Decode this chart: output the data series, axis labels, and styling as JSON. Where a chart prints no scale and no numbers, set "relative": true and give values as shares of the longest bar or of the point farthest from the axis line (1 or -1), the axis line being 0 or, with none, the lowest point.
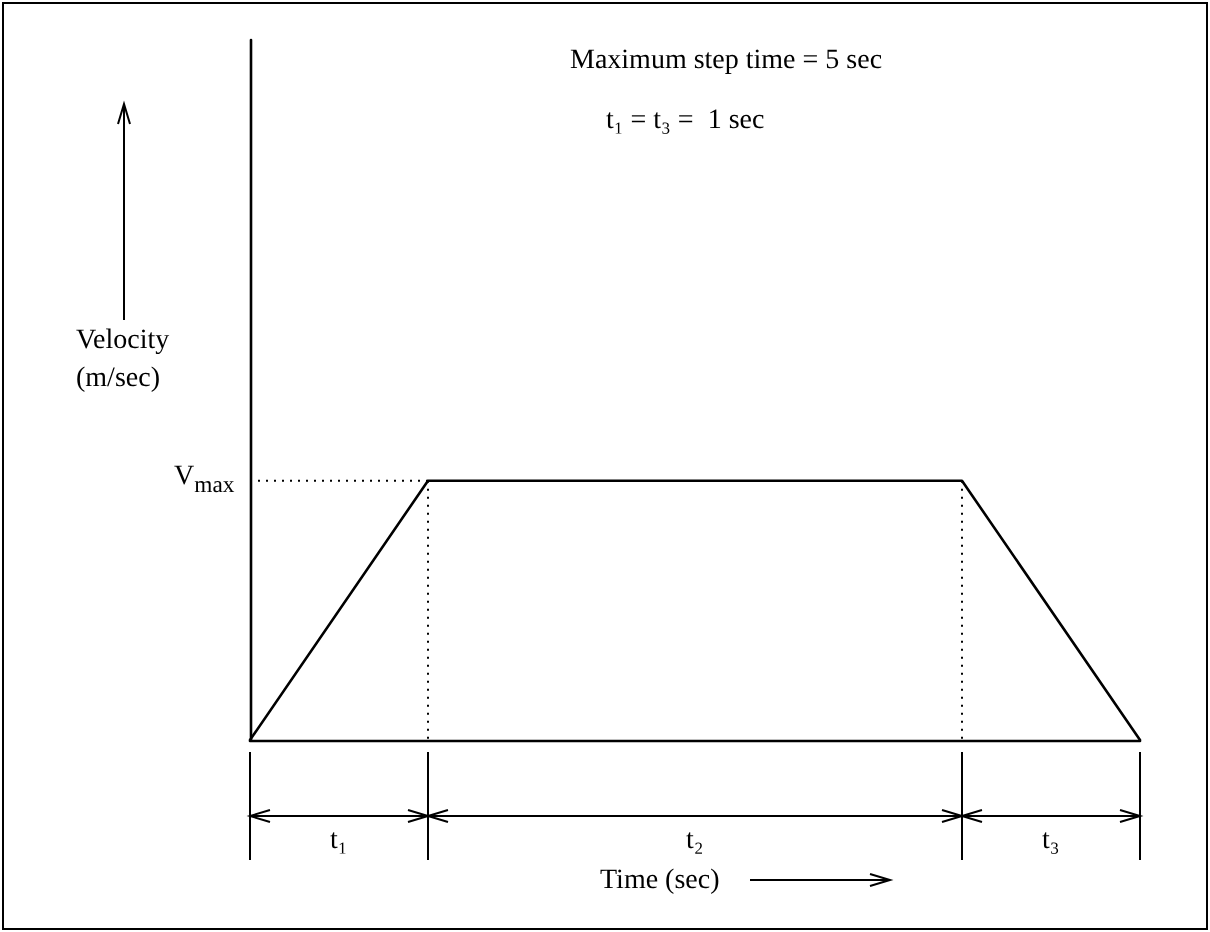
{
  "chart_data": {
    "type": "line",
    "relative": true,
    "color": "#000000",
    "marker": "none",
    "line_style": "solid",
    "categories": [
      null,
      null,
      null,
      null,
      null,
      null
    ],
    "values": [
      0,
      1,
      1,
      1,
      1,
      0
    ],
    "xlabel": "Time (sec)",
    "ylabel": "Velocity\n(m/sec)",
    "annotations": [
      "Maximum step time = 5 sec",
      "t₁ = t₃ =  1 sec",
      "V$_{max}$",
      "t₁",
      "t₂",
      "t₃"
    ]
  }
}
